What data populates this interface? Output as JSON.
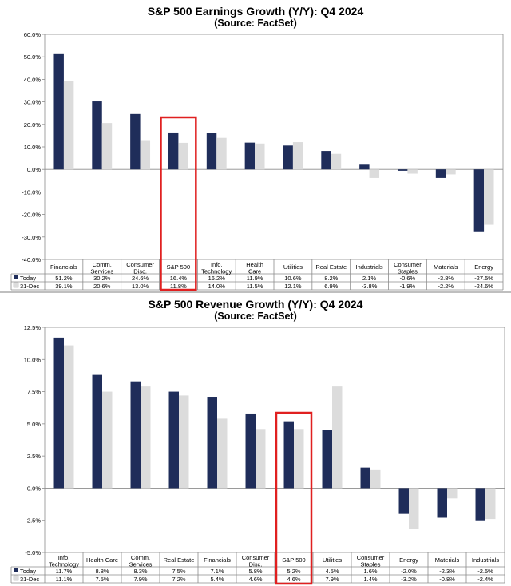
{
  "chart_data": [
    {
      "type": "bar",
      "title": "S&P 500 Earnings Growth (Y/Y): Q4 2024",
      "subtitle": "(Source: FactSet)",
      "categories": [
        "Financials",
        "Comm.\nServices",
        "Consumer\nDisc.",
        "S&P 500",
        "Info.\nTechnology",
        "Health\nCare",
        "Utilities",
        "Real Estate",
        "Industrials",
        "Consumer\nStaples",
        "Materials",
        "Energy"
      ],
      "series": [
        {
          "name": "Today",
          "color": "#1f2d5a",
          "values": [
            51.2,
            30.2,
            24.6,
            16.4,
            16.2,
            11.9,
            10.6,
            8.2,
            2.1,
            -0.6,
            -3.8,
            -27.5
          ]
        },
        {
          "name": "31-Dec",
          "color": "#dcdcdc",
          "values": [
            39.1,
            20.6,
            13.0,
            11.8,
            14.0,
            11.5,
            12.1,
            6.9,
            -3.8,
            -1.9,
            -2.2,
            -24.6
          ]
        }
      ],
      "table_rows": [
        [
          "51.2%",
          "30.2%",
          "24.6%",
          "16.4%",
          "16.2%",
          "11.9%",
          "10.6%",
          "8.2%",
          "2.1%",
          "-0.6%",
          "-3.8%",
          "-27.5%"
        ],
        [
          "39.1%",
          "20.6%",
          "13.0%",
          "11.8%",
          "14.0%",
          "11.5%",
          "12.1%",
          "6.9%",
          "-3.8%",
          "-1.9%",
          "-2.2%",
          "-24.6%"
        ]
      ],
      "ylim": [
        -40,
        60
      ],
      "yticks": [
        "60.0%",
        "50.0%",
        "40.0%",
        "30.0%",
        "20.0%",
        "10.0%",
        "0.0%",
        "-10.0%",
        "-20.0%",
        "-30.0%",
        "-40.0%"
      ],
      "highlight_category": "S&P 500",
      "highlight_color": "#e02020"
    },
    {
      "type": "bar",
      "title": "S&P 500 Revenue Growth (Y/Y): Q4 2024",
      "subtitle": "(Source: FactSet)",
      "categories": [
        "Info.\nTechnology",
        "Health Care",
        "Comm.\nServices",
        "Real Estate",
        "Financials",
        "Consumer\nDisc.",
        "S&P 500",
        "Utilities",
        "Consumer\nStaples",
        "Energy",
        "Materials",
        "Industrials"
      ],
      "series": [
        {
          "name": "Today",
          "color": "#1f2d5a",
          "values": [
            11.7,
            8.8,
            8.3,
            7.5,
            7.1,
            5.8,
            5.2,
            4.5,
            1.6,
            -2.0,
            -2.3,
            -2.5
          ]
        },
        {
          "name": "31-Dec",
          "color": "#dcdcdc",
          "values": [
            11.1,
            7.5,
            7.9,
            7.2,
            5.4,
            4.6,
            4.6,
            7.9,
            1.4,
            -3.2,
            -0.8,
            -2.4
          ]
        }
      ],
      "table_rows": [
        [
          "11.7%",
          "8.8%",
          "8.3%",
          "7.5%",
          "7.1%",
          "5.8%",
          "5.2%",
          "4.5%",
          "1.6%",
          "-2.0%",
          "-2.3%",
          "-2.5%"
        ],
        [
          "11.1%",
          "7.5%",
          "7.9%",
          "7.2%",
          "5.4%",
          "4.6%",
          "4.6%",
          "7.9%",
          "1.4%",
          "-3.2%",
          "-0.8%",
          "-2.4%"
        ]
      ],
      "ylim": [
        -5,
        12.5
      ],
      "yticks": [
        "12.5%",
        "10.0%",
        "7.5%",
        "5.0%",
        "2.5%",
        "0.0%",
        "-2.5%",
        "-5.0%"
      ],
      "highlight_category": "S&P 500",
      "highlight_color": "#e02020"
    }
  ]
}
